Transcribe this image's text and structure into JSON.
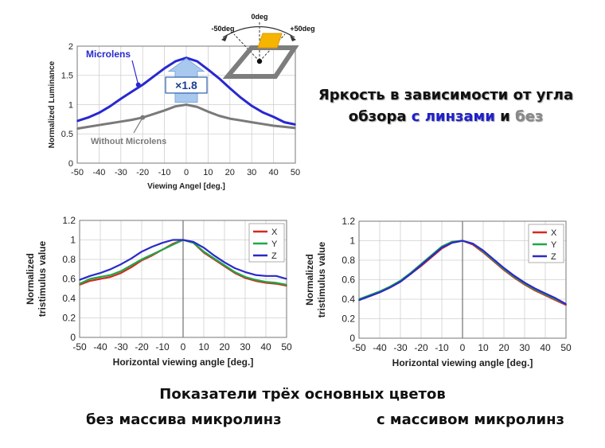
{
  "header": {
    "title_line1": "Яркость в зависимости от угла",
    "title_line2_part1": "обзора ",
    "title_line2_with": "с линзами",
    "title_line2_and": " и ",
    "title_line2_without": "без",
    "color_with": "#1f1fcf",
    "color_without": "#888888"
  },
  "captions": {
    "center": "Показатели трёх основных цветов",
    "left": "без массива микролинз",
    "right": "с массивом микролинз"
  },
  "diagram": {
    "angle_center": "0deg",
    "angle_left": "-50deg",
    "angle_right": "+50deg"
  },
  "chart_data": [
    {
      "type": "line",
      "xlabel": "Viewing Angel  [deg.]",
      "ylabel": "Normalized Luminance",
      "xlim": [
        -50,
        50
      ],
      "ylim": [
        0,
        2
      ],
      "xticks": [
        -50,
        -40,
        -30,
        -20,
        -10,
        0,
        10,
        20,
        30,
        40,
        50
      ],
      "yticks": [
        0,
        0.5,
        1,
        1.5,
        2
      ],
      "grid": true,
      "annotation": "×1.8",
      "series": [
        {
          "name": "Microlens",
          "color": "#2828d0",
          "x": [
            -50,
            -45,
            -40,
            -35,
            -30,
            -25,
            -20,
            -15,
            -10,
            -5,
            0,
            5,
            10,
            15,
            20,
            25,
            30,
            35,
            40,
            45,
            50
          ],
          "y": [
            0.72,
            0.78,
            0.86,
            0.97,
            1.1,
            1.22,
            1.34,
            1.48,
            1.62,
            1.74,
            1.8,
            1.74,
            1.6,
            1.45,
            1.28,
            1.12,
            0.98,
            0.87,
            0.79,
            0.7,
            0.66
          ]
        },
        {
          "name": "Without Microlens",
          "color": "#7a7a7a",
          "x": [
            -50,
            -45,
            -40,
            -35,
            -30,
            -25,
            -20,
            -15,
            -10,
            -5,
            0,
            5,
            10,
            15,
            20,
            25,
            30,
            35,
            40,
            45,
            50
          ],
          "y": [
            0.59,
            0.62,
            0.65,
            0.68,
            0.71,
            0.74,
            0.78,
            0.84,
            0.9,
            0.97,
            1.0,
            0.96,
            0.88,
            0.81,
            0.76,
            0.73,
            0.7,
            0.67,
            0.64,
            0.62,
            0.6
          ]
        }
      ]
    },
    {
      "type": "line",
      "xlabel": "Horizontal viewing angle [deg.]",
      "ylabel": "Normalized tristimulus value",
      "xlim": [
        -50,
        50
      ],
      "ylim": [
        0,
        1.2
      ],
      "xticks": [
        -50,
        -40,
        -30,
        -20,
        -10,
        0,
        10,
        20,
        30,
        40,
        50
      ],
      "yticks": [
        0,
        0.2,
        0.4,
        0.6,
        0.8,
        1,
        1.2
      ],
      "grid": true,
      "legend": "top-right",
      "series": [
        {
          "name": "X",
          "color": "#d42a1e",
          "x": [
            -50,
            -45,
            -40,
            -35,
            -30,
            -25,
            -20,
            -15,
            -10,
            -5,
            0,
            5,
            10,
            15,
            20,
            25,
            30,
            35,
            40,
            45,
            50
          ],
          "y": [
            0.54,
            0.58,
            0.6,
            0.62,
            0.66,
            0.72,
            0.79,
            0.84,
            0.9,
            0.96,
            1.0,
            0.97,
            0.87,
            0.8,
            0.73,
            0.66,
            0.61,
            0.58,
            0.56,
            0.55,
            0.53
          ]
        },
        {
          "name": "Y",
          "color": "#1ea84a",
          "x": [
            -50,
            -45,
            -40,
            -35,
            -30,
            -25,
            -20,
            -15,
            -10,
            -5,
            0,
            5,
            10,
            15,
            20,
            25,
            30,
            35,
            40,
            45,
            50
          ],
          "y": [
            0.55,
            0.6,
            0.62,
            0.64,
            0.68,
            0.74,
            0.8,
            0.85,
            0.9,
            0.95,
            1.0,
            0.97,
            0.88,
            0.81,
            0.74,
            0.67,
            0.62,
            0.59,
            0.57,
            0.56,
            0.54
          ]
        },
        {
          "name": "Z",
          "color": "#2a2ac8",
          "x": [
            -50,
            -45,
            -40,
            -35,
            -30,
            -25,
            -20,
            -15,
            -10,
            -5,
            0,
            5,
            10,
            15,
            20,
            25,
            30,
            35,
            40,
            45,
            50
          ],
          "y": [
            0.59,
            0.63,
            0.66,
            0.7,
            0.75,
            0.81,
            0.88,
            0.93,
            0.97,
            1.0,
            1.0,
            0.98,
            0.92,
            0.84,
            0.77,
            0.71,
            0.67,
            0.64,
            0.63,
            0.63,
            0.6
          ]
        }
      ]
    },
    {
      "type": "line",
      "xlabel": "Horizontal viewing angle [deg.]",
      "ylabel": "Normalized tristimulus value",
      "xlim": [
        -50,
        50
      ],
      "ylim": [
        0,
        1.2
      ],
      "xticks": [
        -50,
        -40,
        -30,
        -20,
        -10,
        0,
        10,
        20,
        30,
        40,
        50
      ],
      "yticks": [
        0,
        0.2,
        0.4,
        0.6,
        0.8,
        1,
        1.2
      ],
      "grid": true,
      "legend": "top-right",
      "series": [
        {
          "name": "X",
          "color": "#d42a1e",
          "x": [
            -50,
            -45,
            -40,
            -35,
            -30,
            -25,
            -20,
            -15,
            -10,
            -5,
            0,
            5,
            10,
            15,
            20,
            25,
            30,
            35,
            40,
            45,
            50
          ],
          "y": [
            0.4,
            0.43,
            0.47,
            0.52,
            0.58,
            0.66,
            0.74,
            0.83,
            0.92,
            0.98,
            1.0,
            0.96,
            0.88,
            0.79,
            0.7,
            0.62,
            0.55,
            0.49,
            0.44,
            0.39,
            0.34
          ]
        },
        {
          "name": "Y",
          "color": "#1ea84a",
          "x": [
            -50,
            -45,
            -40,
            -35,
            -30,
            -25,
            -20,
            -15,
            -10,
            -5,
            0,
            5,
            10,
            15,
            20,
            25,
            30,
            35,
            40,
            45,
            50
          ],
          "y": [
            0.4,
            0.44,
            0.48,
            0.53,
            0.59,
            0.67,
            0.76,
            0.85,
            0.94,
            0.99,
            1.0,
            0.97,
            0.89,
            0.8,
            0.71,
            0.63,
            0.56,
            0.5,
            0.45,
            0.4,
            0.35
          ]
        },
        {
          "name": "Z",
          "color": "#2a2ac8",
          "x": [
            -50,
            -45,
            -40,
            -35,
            -30,
            -25,
            -20,
            -15,
            -10,
            -5,
            0,
            5,
            10,
            15,
            20,
            25,
            30,
            35,
            40,
            45,
            50
          ],
          "y": [
            0.39,
            0.43,
            0.47,
            0.52,
            0.58,
            0.66,
            0.75,
            0.84,
            0.93,
            0.98,
            1.0,
            0.97,
            0.9,
            0.81,
            0.72,
            0.64,
            0.57,
            0.51,
            0.46,
            0.41,
            0.35
          ]
        }
      ]
    }
  ]
}
